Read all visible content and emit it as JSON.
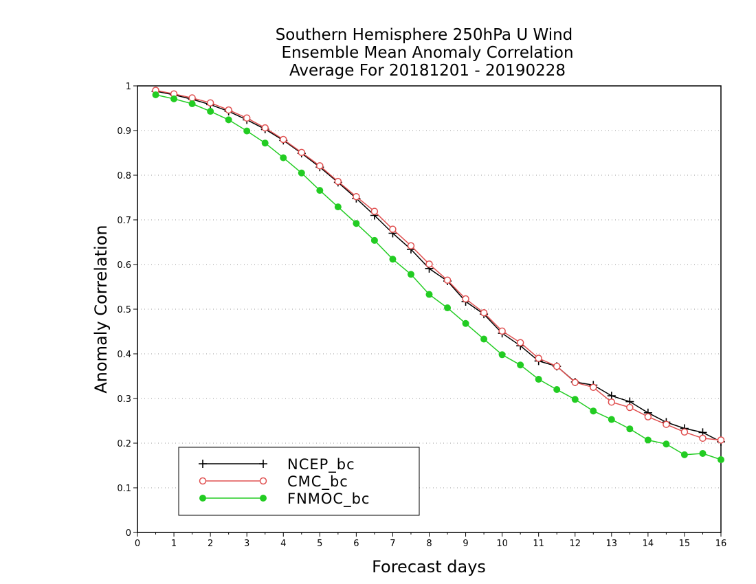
{
  "chart_data": {
    "type": "line",
    "title_lines": [
      "Southern Hemisphere 250hPa U Wind",
      "Ensemble Mean Anomaly Correlation",
      "Average For 20181201 - 20190228"
    ],
    "xlabel": "Forecast days",
    "ylabel": "Anomaly Correlation",
    "xlim": [
      0,
      16
    ],
    "ylim": [
      0,
      1
    ],
    "x_ticks": [
      "0",
      "1",
      "2",
      "3",
      "4",
      "5",
      "6",
      "7",
      "8",
      "9",
      "10",
      "11",
      "12",
      "13",
      "14",
      "15",
      "16"
    ],
    "y_ticks": [
      "0",
      "0.1",
      "0.2",
      "0.3",
      "0.4",
      "0.5",
      "0.6",
      "0.7",
      "0.8",
      "0.9",
      "1"
    ],
    "grid": true,
    "legend_position": "bottom-left",
    "x": [
      0.5,
      1,
      1.5,
      2,
      2.5,
      3,
      3.5,
      4,
      4.5,
      5,
      5.5,
      6,
      6.5,
      7,
      7.5,
      8,
      8.5,
      9,
      9.5,
      10,
      10.5,
      11,
      11.5,
      12,
      12.5,
      13,
      13.5,
      14,
      14.5,
      15,
      15.5,
      16
    ],
    "series": [
      {
        "name": "NCEP_bc",
        "color": "#000000",
        "marker": "plus",
        "values": [
          0.988,
          0.98,
          0.97,
          0.958,
          0.943,
          0.924,
          0.903,
          0.878,
          0.849,
          0.818,
          0.784,
          0.748,
          0.71,
          0.67,
          0.634,
          0.591,
          0.563,
          0.517,
          0.489,
          0.446,
          0.418,
          0.384,
          0.372,
          0.337,
          0.33,
          0.306,
          0.293,
          0.268,
          0.247,
          0.233,
          0.224,
          0.203
        ]
      },
      {
        "name": "CMC_bc",
        "color": "#e05050",
        "marker": "open-circle",
        "values": [
          0.99,
          0.982,
          0.973,
          0.962,
          0.946,
          0.928,
          0.906,
          0.88,
          0.851,
          0.821,
          0.786,
          0.752,
          0.719,
          0.679,
          0.642,
          0.601,
          0.565,
          0.523,
          0.492,
          0.451,
          0.425,
          0.39,
          0.372,
          0.336,
          0.325,
          0.292,
          0.28,
          0.259,
          0.242,
          0.225,
          0.211,
          0.207
        ]
      },
      {
        "name": "FNMOC_bc",
        "color": "#22cc22",
        "marker": "filled-circle",
        "values": [
          0.98,
          0.971,
          0.96,
          0.943,
          0.924,
          0.899,
          0.872,
          0.839,
          0.805,
          0.766,
          0.729,
          0.692,
          0.654,
          0.612,
          0.578,
          0.533,
          0.503,
          0.468,
          0.433,
          0.398,
          0.375,
          0.343,
          0.32,
          0.298,
          0.272,
          0.253,
          0.232,
          0.207,
          0.198,
          0.174,
          0.177,
          0.163
        ]
      }
    ]
  }
}
